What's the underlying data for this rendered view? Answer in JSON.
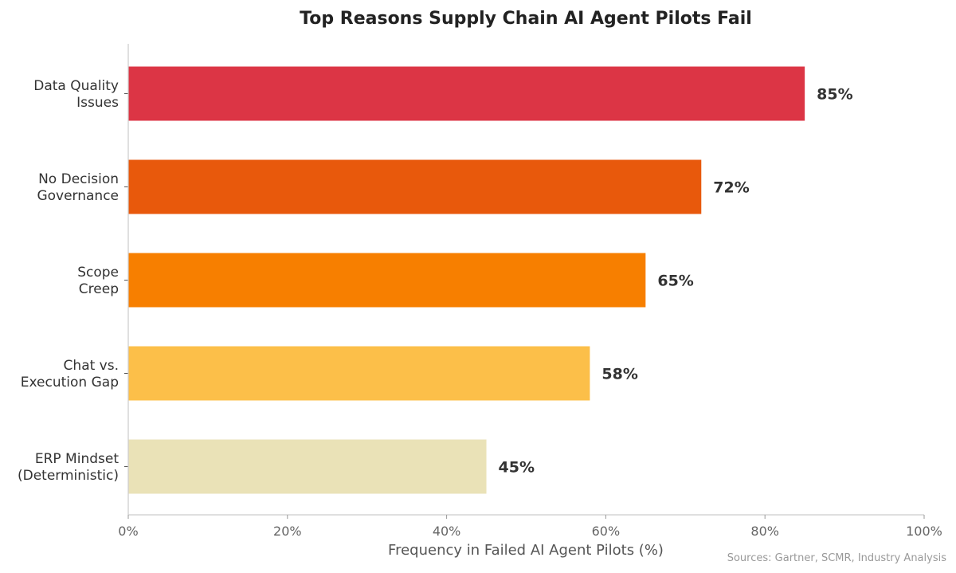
{
  "chart_data": {
    "type": "bar",
    "orientation": "horizontal",
    "title": "Top Reasons Supply Chain AI Agent Pilots Fail",
    "xlabel": "Frequency in Failed AI Agent Pilots (%)",
    "ylabel": "",
    "categories": [
      [
        "Data Quality",
        "Issues"
      ],
      [
        "No Decision",
        "Governance"
      ],
      [
        "Scope",
        "Creep"
      ],
      [
        "Chat vs.",
        "Execution Gap"
      ],
      [
        "ERP Mindset",
        "(Deterministic)"
      ]
    ],
    "values": [
      85,
      72,
      65,
      58,
      45
    ],
    "value_labels": [
      "85%",
      "72%",
      "65%",
      "58%",
      "45%"
    ],
    "colors": [
      "#DC3545",
      "#E8590C",
      "#F77F00",
      "#FCBF49",
      "#EAE2B7"
    ],
    "xlim": [
      0,
      100
    ],
    "xticks": [
      0,
      20,
      40,
      60,
      80,
      100
    ],
    "xtick_labels": [
      "0%",
      "20%",
      "40%",
      "60%",
      "80%",
      "100%"
    ],
    "grid": false,
    "legend": "none",
    "source_note": "Sources: Gartner, SCMR, Industry Analysis"
  }
}
